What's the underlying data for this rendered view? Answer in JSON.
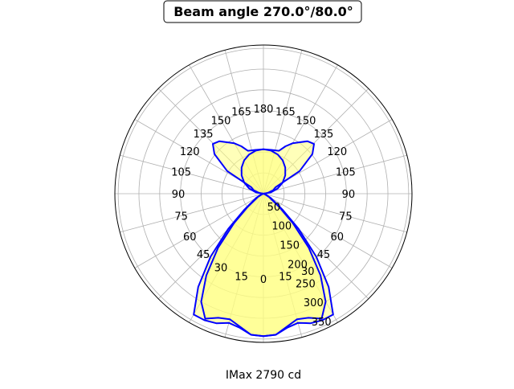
{
  "chart_data": {
    "type": "polar",
    "title": "Beam angle 270.0°/80.0°",
    "xlabel": "IMax 2790 cd",
    "rlim": [
      0,
      358
    ],
    "radial_ticks": [
      50,
      100,
      150,
      200,
      250,
      300,
      350
    ],
    "angle_ticks": [
      0,
      15,
      30,
      45,
      60,
      75,
      90,
      105,
      120,
      135,
      150,
      165,
      180
    ],
    "angle_zero": "bottom",
    "angle_direction": "symmetric, both sides",
    "grid": true,
    "fill_color": "#ffff80",
    "line_color": "#0000ff",
    "series": [
      {
        "angles": [
          0,
          5,
          10,
          15,
          20,
          25,
          30,
          35,
          40,
          45,
          50,
          60,
          70,
          80,
          90,
          100,
          110,
          118,
          122,
          129,
          134.5,
          140,
          150,
          155,
          160,
          170,
          180
        ],
        "values": [
          343,
          341,
          328,
          322,
          332,
          336,
          336,
          274,
          198,
          120,
          60,
          20,
          5,
          0,
          0,
          10,
          25,
          33,
          103,
          152,
          171,
          165,
          140,
          126,
          110,
          107,
          107
        ]
      },
      {
        "angles": [
          0,
          5,
          10,
          15,
          20,
          25,
          30,
          35,
          40,
          45,
          50,
          60,
          70,
          80,
          90,
          100,
          110,
          120,
          130,
          140,
          150,
          160,
          170,
          180
        ],
        "values": [
          343,
          341,
          325,
          313,
          318,
          332,
          300,
          240,
          170,
          100,
          50,
          15,
          3,
          0,
          0,
          18.6,
          36.6,
          53.5,
          68.8,
          82,
          92.7,
          100.5,
          105.4,
          107
        ]
      }
    ]
  }
}
